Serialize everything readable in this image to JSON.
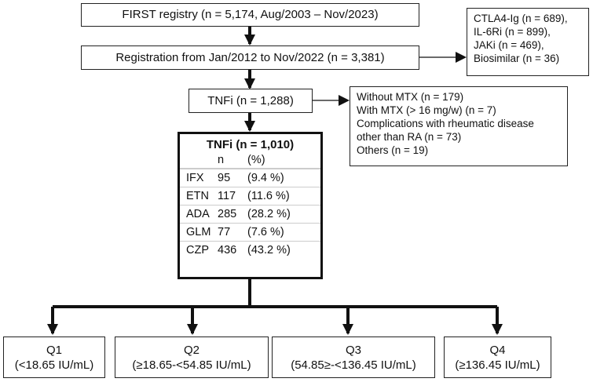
{
  "colors": {
    "line": "#111111",
    "box_border": "#222222"
  },
  "registry": "FIRST registry (n = 5,174, Aug/2003 – Nov/2023)",
  "registration": "Registration from Jan/2012 to Nov/2022 (n = 3,381)",
  "excluded_top": [
    "CTLA4-Ig (n = 689),",
    "IL-6Ri (n = 899),",
    "JAKi (n = 469),",
    "Biosimilar (n = 36)"
  ],
  "tnfi": "TNFi (n = 1,288)",
  "excluded_mid": [
    "Without MTX (n = 179)",
    "With MTX (> 16 mg/w) (n = 7)",
    "Complications with rheumatic disease",
    "other than RA (n = 73)",
    "Others (n = 19)"
  ],
  "final": {
    "title": "TNFi (n = 1,010)",
    "headers": [
      "",
      "n",
      "(%)"
    ],
    "rows": [
      {
        "drug": "IFX",
        "n": "95",
        "pct": "(9.4 %)"
      },
      {
        "drug": "ETN",
        "n": "117",
        "pct": "(11.6 %)"
      },
      {
        "drug": "ADA",
        "n": "285",
        "pct": "(28.2 %)"
      },
      {
        "drug": "GLM",
        "n": "77",
        "pct": "(7.6 %)"
      },
      {
        "drug": "CZP",
        "n": "436",
        "pct": "(43.2 %)"
      }
    ]
  },
  "quartiles": [
    {
      "label": "Q1",
      "range": "(<18.65 IU/mL)"
    },
    {
      "label": "Q2",
      "range": "(≥18.65-<54.85 IU/mL)"
    },
    {
      "label": "Q3",
      "range": "(54.85≥-<136.45 IU/mL)"
    },
    {
      "label": "Q4",
      "range": "(≥136.45 IU/mL)"
    }
  ]
}
